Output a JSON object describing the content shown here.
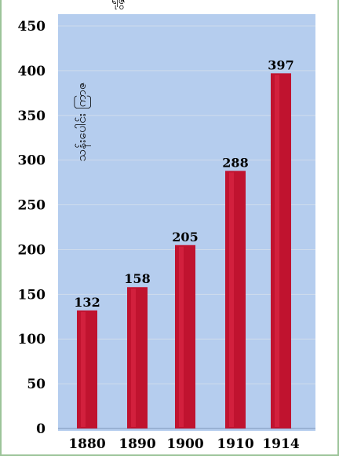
{
  "chart_data": {
    "type": "bar",
    "title": "ရုံဇွ",
    "categories": [
      "1880",
      "1890",
      "1900",
      "1910",
      "1914"
    ],
    "values": [
      132,
      158,
      205,
      288,
      397
    ],
    "data_labels": [
      "132",
      "158",
      "205",
      "288",
      "397"
    ],
    "ylabel": "သန်းပေါင်း ကြာဇ",
    "xlabel": "",
    "ylim": [
      0,
      450
    ],
    "yticks": [
      0,
      50,
      100,
      150,
      200,
      250,
      300,
      350,
      400,
      450
    ],
    "ytick_labels": [
      "0",
      "50",
      "100",
      "150",
      "200",
      "250",
      "300",
      "350",
      "400",
      "450"
    ],
    "grid": "horizontal",
    "colors": {
      "plot_background": "#b5cdee",
      "bar": "#c0132f",
      "bar_highlight": "#e8304f",
      "grid": "#cfdcec",
      "frame": "#9dc49a"
    }
  }
}
